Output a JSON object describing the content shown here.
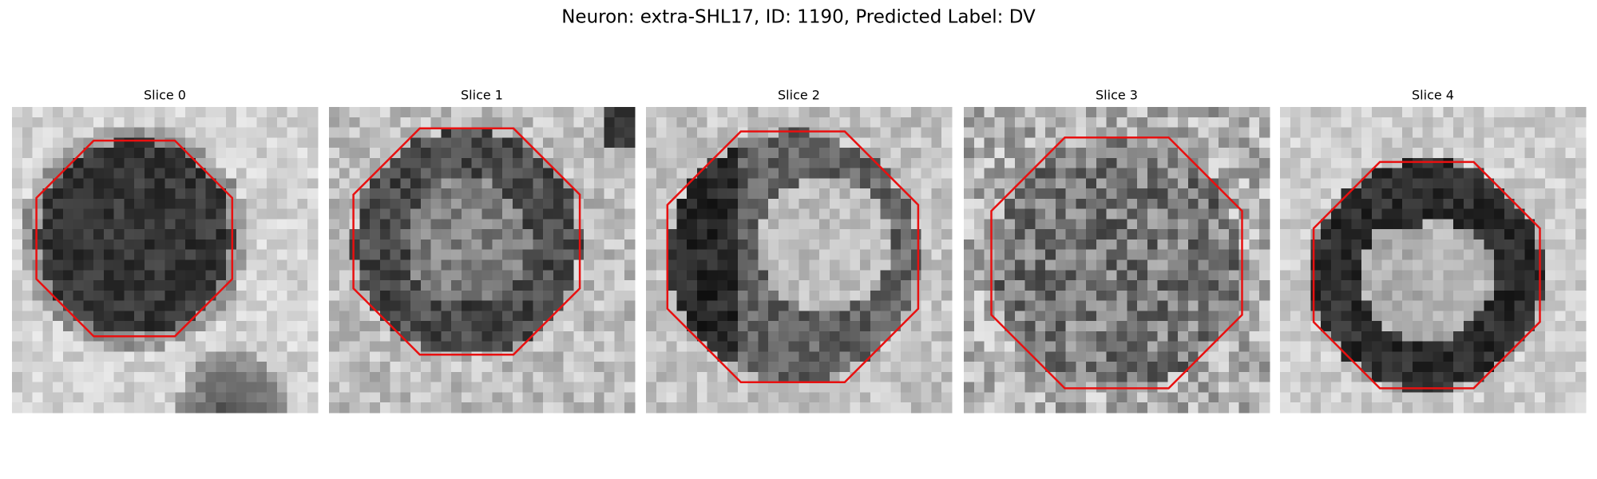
{
  "title": "Neuron: extra-SHL17, ID: 1190, Predicted Label: DV",
  "panels": [
    {
      "title": "Slice 0"
    },
    {
      "title": "Slice 1"
    },
    {
      "title": "Slice 2"
    },
    {
      "title": "Slice 3"
    },
    {
      "title": "Slice 4"
    }
  ]
}
